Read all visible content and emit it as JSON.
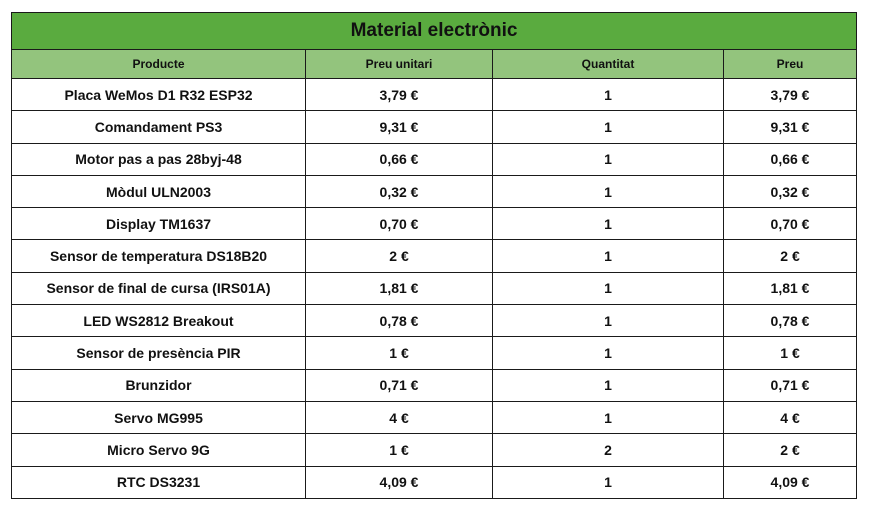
{
  "table": {
    "title": "Material electrònic",
    "headers": [
      "Producte",
      "Preu unitari",
      "Quantitat",
      "Preu"
    ],
    "rows": [
      [
        "Placa WeMos D1 R32 ESP32",
        "3,79 €",
        "1",
        "3,79 €"
      ],
      [
        "Comandament PS3",
        "9,31 €",
        "1",
        "9,31 €"
      ],
      [
        "Motor pas a pas 28byj-48",
        "0,66 €",
        "1",
        "0,66 €"
      ],
      [
        "Mòdul ULN2003",
        "0,32 €",
        "1",
        "0,32 €"
      ],
      [
        "Display TM1637",
        "0,70 €",
        "1",
        "0,70 €"
      ],
      [
        "Sensor de temperatura DS18B20",
        "2 €",
        "1",
        "2 €"
      ],
      [
        "Sensor de final de cursa (IRS01A)",
        "1,81 €",
        "1",
        "1,81 €"
      ],
      [
        "LED WS2812 Breakout",
        "0,78 €",
        "1",
        "0,78 €"
      ],
      [
        "Sensor de presència PIR",
        "1 €",
        "1",
        "1 €"
      ],
      [
        "Brunzidor",
        "0,71 €",
        "1",
        "0,71 €"
      ],
      [
        "Servo MG995",
        "4 €",
        "1",
        "4 €"
      ],
      [
        "Micro Servo 9G",
        "1 €",
        "2",
        "2 €"
      ],
      [
        "RTC DS3231",
        "4,09 €",
        "1",
        "4,09 €"
      ]
    ]
  },
  "colors": {
    "title_bg": "#5aab3f",
    "header_bg": "#93c47d",
    "border": "#1a1a1a"
  }
}
